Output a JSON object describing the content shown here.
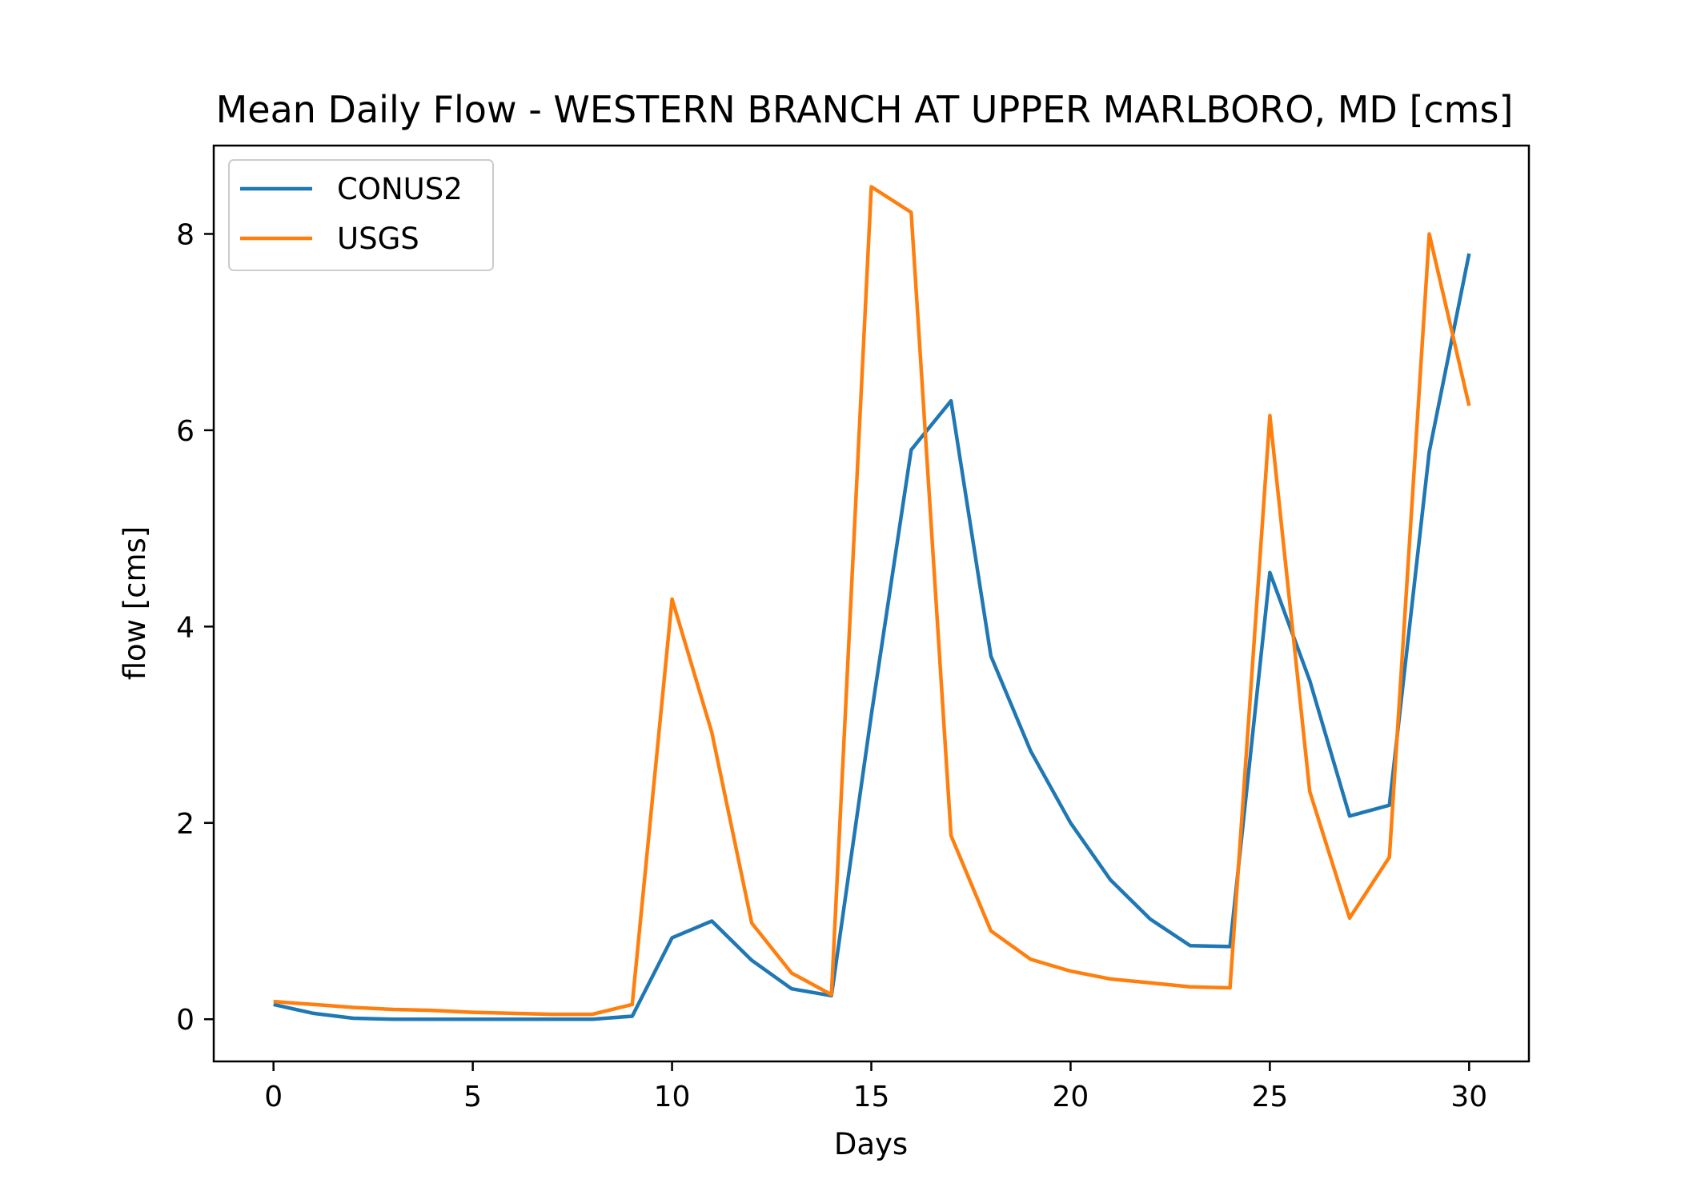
{
  "chart_data": {
    "type": "line",
    "title": "Mean Daily Flow - WESTERN BRANCH AT UPPER MARLBORO, MD [cms]",
    "xlabel": "Days",
    "ylabel": "flow [cms]",
    "xlim": [
      -1.5,
      31.5
    ],
    "ylim": [
      -0.43,
      8.9
    ],
    "xticks": [
      0,
      5,
      10,
      15,
      20,
      25,
      30
    ],
    "yticks": [
      0,
      2,
      4,
      6,
      8
    ],
    "grid": false,
    "legend_position": "upper-left",
    "x": [
      0,
      1,
      2,
      3,
      4,
      5,
      6,
      7,
      8,
      9,
      10,
      11,
      12,
      13,
      14,
      15,
      16,
      17,
      18,
      19,
      20,
      21,
      22,
      23,
      24,
      25,
      26,
      27,
      28,
      29,
      30
    ],
    "series": [
      {
        "name": "CONUS2",
        "color": "#1f77b4",
        "values": [
          0.15,
          0.06,
          0.01,
          0.0,
          0.0,
          0.0,
          0.0,
          0.0,
          0.0,
          0.03,
          0.83,
          1.0,
          0.6,
          0.31,
          0.24,
          3.1,
          5.8,
          6.3,
          3.7,
          2.73,
          2.0,
          1.42,
          1.02,
          0.75,
          0.74,
          4.55,
          3.45,
          2.07,
          2.18,
          5.78,
          7.8
        ]
      },
      {
        "name": "USGS",
        "color": "#ff7f0e",
        "values": [
          0.18,
          0.15,
          0.12,
          0.1,
          0.09,
          0.07,
          0.06,
          0.05,
          0.05,
          0.15,
          4.28,
          2.92,
          0.98,
          0.47,
          0.25,
          8.48,
          8.22,
          1.87,
          0.9,
          0.61,
          0.49,
          0.41,
          0.37,
          0.33,
          0.32,
          6.15,
          2.32,
          1.03,
          1.65,
          8.0,
          6.25
        ]
      }
    ]
  }
}
